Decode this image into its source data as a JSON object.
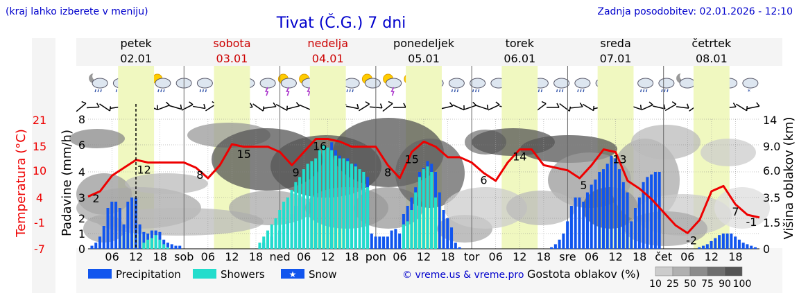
{
  "header": {
    "hint": "(kraj lahko izberete v meniju)",
    "title": "Tivat (Č.G.) 7 dni",
    "updated": "Zadnja posodobitev: 02.01.2026 - 12:10"
  },
  "colors": {
    "weekday": "#000000",
    "weekend": "#cc0000",
    "precip": "#1155ee",
    "showers": "#22ddcc",
    "temp_line": "#ee0000",
    "daylight": "#f0f8c0",
    "header_blue": "#0000cc"
  },
  "chart_data": {
    "type": "bar+line",
    "title": "Tivat (Č.G.) 7 dni",
    "days": [
      {
        "name": "petek",
        "date": "02.01",
        "weekend": false
      },
      {
        "name": "sobota",
        "date": "03.01",
        "weekend": true
      },
      {
        "name": "nedelja",
        "date": "04.01",
        "weekend": true
      },
      {
        "name": "ponedeljek",
        "date": "05.01",
        "weekend": false
      },
      {
        "name": "torek",
        "date": "06.01",
        "weekend": false
      },
      {
        "name": "sreda",
        "date": "07.01",
        "weekend": false
      },
      {
        "name": "četrtek",
        "date": "08.01",
        "weekend": false
      }
    ],
    "x_ticks": [
      "06",
      "12",
      "18",
      "sob",
      "06",
      "12",
      "18",
      "ned",
      "06",
      "12",
      "18",
      "pon",
      "06",
      "12",
      "18",
      "tor",
      "06",
      "12",
      "18",
      "sre",
      "06",
      "12",
      "18",
      "čet",
      "06",
      "12",
      "18"
    ],
    "x_hours": [
      6,
      12,
      18,
      24,
      30,
      36,
      42,
      48,
      54,
      60,
      66,
      72,
      78,
      84,
      90,
      96,
      102,
      108,
      114,
      120,
      126,
      132,
      138,
      144,
      150,
      156,
      162
    ],
    "xlim_hours": [
      0,
      168
    ],
    "left_axis": {
      "label": "Padavine (mm/h)",
      "ticks": [
        "0",
        "1",
        "2",
        "3",
        "4",
        "6",
        "8"
      ],
      "range": [
        0,
        8
      ]
    },
    "temp_axis": {
      "label": "Temperatura (°C)",
      "ticks": [
        "-7",
        "-1",
        "4",
        "10",
        "15",
        "21"
      ]
    },
    "right_axis": {
      "label": "Višina oblakov (km)",
      "ticks": [
        "0",
        "1.5",
        "3.5",
        "6.0",
        "9.0",
        "14"
      ]
    },
    "temperature": {
      "hours": [
        0,
        3,
        6,
        9,
        12,
        15,
        18,
        21,
        24,
        27,
        30,
        33,
        36,
        39,
        42,
        45,
        48,
        51,
        54,
        57,
        60,
        63,
        66,
        69,
        72,
        75,
        78,
        81,
        84,
        87,
        90,
        93,
        96,
        99,
        102,
        105,
        108,
        111,
        114,
        117,
        120,
        123,
        126,
        129,
        132,
        135,
        138,
        141,
        144,
        147,
        150,
        153,
        156,
        159,
        162,
        165,
        168
      ],
      "values_c": [
        5,
        6,
        9,
        10.5,
        12,
        11.5,
        11.5,
        11.5,
        11.5,
        10.5,
        8.5,
        11,
        15,
        14.5,
        14.5,
        14.5,
        13.5,
        11,
        13.5,
        16,
        16,
        15.5,
        14.5,
        14.5,
        14.5,
        11,
        8.5,
        13.5,
        15.5,
        14.5,
        12.5,
        12.5,
        11.5,
        9.5,
        8,
        11.5,
        14,
        14,
        11,
        10.5,
        10,
        8.5,
        11,
        14,
        13.5,
        8,
        6.5,
        4.5,
        2,
        -0.5,
        -2,
        0.5,
        6,
        7,
        3.5,
        1.5,
        1
      ],
      "labels": [
        {
          "hour": 2,
          "text": "2"
        },
        {
          "hour": 14,
          "text": "12"
        },
        {
          "hour": 28,
          "text": "8"
        },
        {
          "hour": 39,
          "text": "15"
        },
        {
          "hour": 52,
          "text": "9"
        },
        {
          "hour": 58,
          "text": "16"
        },
        {
          "hour": 75,
          "text": "8"
        },
        {
          "hour": 81,
          "text": "15"
        },
        {
          "hour": 99,
          "text": "6"
        },
        {
          "hour": 108,
          "text": "14"
        },
        {
          "hour": 124,
          "text": "5"
        },
        {
          "hour": 133,
          "text": "13"
        },
        {
          "hour": 151,
          "text": "-2"
        },
        {
          "hour": 162,
          "text": "7"
        },
        {
          "hour": 166,
          "text": "-1"
        }
      ]
    },
    "precipitation_mm_h": {
      "start_hour": 1,
      "step_hours": 1,
      "values": [
        0.2,
        0.4,
        0.8,
        1.5,
        2.5,
        2.8,
        2.8,
        2.5,
        1.6,
        2.8,
        3.0,
        3.0,
        1.6,
        1.1,
        1.0,
        1.2,
        1.2,
        1.1,
        0.6,
        0.4,
        0.3,
        0.2,
        0.2,
        0,
        0,
        0,
        0,
        0,
        0,
        0,
        0,
        0,
        0,
        0,
        0,
        0,
        0,
        0,
        0,
        0,
        0,
        0,
        0.2,
        0.4,
        0.6,
        0.8,
        1.0,
        1.2,
        1.5,
        1.8,
        2.2,
        2.6,
        3.0,
        3.3,
        3.6,
        3.8,
        4.0,
        4.4,
        5.0,
        5.8,
        6.2,
        5.6,
        5.2,
        5.0,
        5.0,
        4.6,
        4.6,
        4.2,
        4.0,
        3.8,
        1.0,
        0.8,
        0.8,
        0.8,
        0.8,
        1.2,
        1.3,
        1.0,
        2.2,
        2.6,
        3.0,
        3.4,
        4.0,
        4.3,
        4.8,
        4.6,
        4.0,
        3.2,
        2.4,
        2.0,
        1.4,
        0.4,
        0.1,
        0,
        0,
        0,
        0,
        0,
        0,
        0,
        0,
        0,
        0,
        0,
        0,
        0,
        0,
        0,
        0,
        0,
        0,
        0,
        0,
        0,
        0,
        0.1,
        0.3,
        0.6,
        1.0,
        1.8,
        2.6,
        3.0,
        3.0,
        2.8,
        3.2,
        3.5,
        3.7,
        4.0,
        4.2,
        4.6,
        5.2,
        5.0,
        4.2,
        3.6,
        3.2,
        1.8,
        2.5,
        3.0,
        3.6,
        3.8,
        3.9,
        4.0,
        4.0,
        0,
        0,
        0,
        0,
        0,
        0,
        0,
        0,
        0,
        0.1,
        0.2,
        0.3,
        0.5,
        0.7,
        0.9,
        1.0,
        1.0,
        1.0,
        0.8,
        0.6,
        0.4,
        0.3,
        0.2,
        0.1
      ]
    },
    "showers_mm_h": {
      "start_hour": 1,
      "step_hours": 1,
      "values": [
        0,
        0,
        0,
        0,
        0,
        0,
        0,
        0,
        0,
        0,
        0,
        0,
        0,
        0.4,
        0.6,
        0.7,
        0.9,
        0.6,
        0.3,
        0.1,
        0,
        0,
        0,
        0,
        0,
        0,
        0,
        0,
        0,
        0,
        0,
        0,
        0,
        0,
        0,
        0,
        0,
        0,
        0,
        0,
        0,
        0,
        0.4,
        0.8,
        1.2,
        1.6,
        2.0,
        2.4,
        2.8,
        3.0,
        3.3,
        3.6,
        3.8,
        4.2,
        4.6,
        4.8,
        5.0,
        5.6,
        6.0,
        5.8,
        5.6,
        5.2,
        5.0,
        5.0,
        4.8,
        4.6,
        4.4,
        4.2,
        4.0,
        3.4,
        0,
        0,
        0,
        0,
        0,
        0,
        0,
        0,
        1.6,
        1.8,
        2.4,
        3.2,
        3.8,
        4.2,
        4.4,
        4.0,
        3.0,
        0,
        0,
        0,
        0,
        0,
        0,
        0,
        0,
        0,
        0,
        0,
        0,
        0,
        0,
        0,
        0,
        0,
        0,
        0,
        0,
        0,
        0,
        0,
        0,
        0,
        0,
        0,
        0,
        0,
        0,
        0,
        0,
        0,
        0,
        0,
        0,
        0,
        0,
        0,
        0,
        0,
        0,
        0,
        0,
        0,
        0,
        0,
        0,
        0,
        0,
        0,
        0,
        0,
        0,
        0,
        0,
        0,
        0,
        0,
        0,
        0,
        0,
        0,
        0,
        0,
        0,
        0,
        0,
        0,
        0,
        0,
        0,
        0,
        0,
        0,
        0
      ]
    },
    "weather_icons": [
      "night-cloud-rain",
      "cloud-rain",
      "cloud-rain",
      "sun-cloud-rain",
      "cloud",
      "cloud-rain",
      "sun-storm",
      "sun-storm",
      "cloud-storm",
      "sun-storm",
      "sun-storm",
      "sun-storm",
      "night-cloud-rain",
      "sun-cloud",
      "sun-storm",
      "sun-storm",
      "sun-cloud-rain",
      "cloud-rain",
      "cloud-rain",
      "cloud",
      "cloud-rain",
      "cloud-rain",
      "cloud-rain",
      "cloud-rain",
      "cloud",
      "cloud-rain",
      "cloud-rain",
      "cloud-rain",
      "night-cloud",
      "cloud-snow",
      "cloud-snow",
      "cloud-snow"
    ],
    "legend": {
      "precipitation": "Precipitation",
      "showers": "Showers",
      "snow": "Snow",
      "credit": "© vreme.us & vreme.pro",
      "cloud_title": "Gostota oblakov (%)",
      "cloud_steps": [
        "10",
        "25",
        "50",
        "75",
        "90",
        "100"
      ]
    }
  }
}
